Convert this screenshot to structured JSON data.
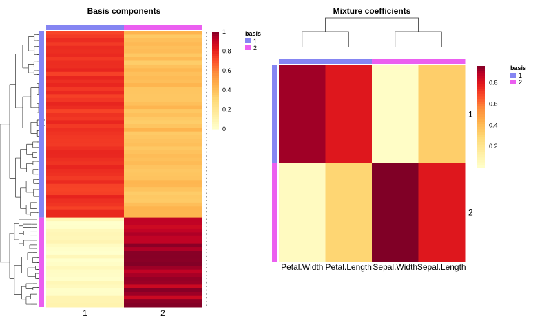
{
  "chart_data": [
    {
      "type": "heatmap",
      "title": "Basis components",
      "columns": [
        "1",
        "2"
      ],
      "column_basis": [
        "1",
        "2"
      ],
      "row_groups": [
        {
          "basis": "1",
          "rows": 50
        },
        {
          "basis": "2",
          "rows": 24
        }
      ],
      "approx_values": [
        {
          "basis": "1",
          "col_1_range": [
            0.72,
            0.8
          ],
          "col_2_range": [
            0.34,
            0.45
          ]
        },
        {
          "basis": "2",
          "col_1_range": [
            0.0,
            0.1
          ],
          "col_2_range": [
            0.88,
            1.0
          ]
        }
      ],
      "colorbar": {
        "ticks": [
          "0",
          "0.2",
          "0.4",
          "0.6",
          "0.8",
          "1"
        ],
        "range": [
          0,
          1
        ]
      },
      "legend": {
        "title": "basis",
        "entries": [
          {
            "label": "1",
            "color": "#8585f2"
          },
          {
            "label": "2",
            "color": "#eb5ff0"
          }
        ]
      },
      "dendrogram": "rows"
    },
    {
      "type": "heatmap",
      "title": "Mixture coefficients",
      "columns": [
        "Petal.Width",
        "Petal.Length",
        "Sepal.Width",
        "Sepal.Length"
      ],
      "column_basis": [
        "1",
        "1",
        "2",
        "2"
      ],
      "rows": [
        "1",
        "2"
      ],
      "row_basis": [
        "1",
        "2"
      ],
      "values": [
        [
          0.92,
          0.8,
          0.02,
          0.33
        ],
        [
          0.04,
          0.3,
          0.96,
          0.8
        ]
      ],
      "colorbar": {
        "ticks": [
          "0.2",
          "0.4",
          "0.6",
          "0.8"
        ],
        "range": [
          0,
          0.96
        ]
      },
      "legend": {
        "title": "basis",
        "entries": [
          {
            "label": "1",
            "color": "#8585f2"
          },
          {
            "label": "2",
            "color": "#eb5ff0"
          }
        ]
      },
      "dendrogram": "columns"
    }
  ]
}
